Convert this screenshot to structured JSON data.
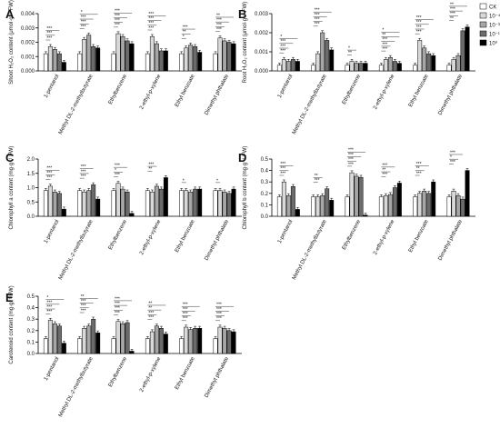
{
  "legend": {
    "entries": [
      "CK",
      "10⁻⁴",
      "10⁻³",
      "10⁻¹",
      "10⁰"
    ],
    "colors": [
      "#ffffff",
      "#d9d9d9",
      "#a6a6a6",
      "#6b6b6b",
      "#000000"
    ],
    "placement": "top-right"
  },
  "chart_data": [
    {
      "panel": "A",
      "type": "bar",
      "ylabel": "Shoot H₂O₂ content (μmol·g⁻¹ FW)",
      "ylim": [
        0,
        0.004
      ],
      "yticks": [
        "0.000",
        "0.001",
        "0.002",
        "0.003",
        "0.004"
      ],
      "categories": [
        "1-pentanol",
        "Methyl DL-2-methylbutyrate",
        "Ethylbenzene",
        "2-ethyl-p-xylene",
        "Ethyl benzoate",
        "Dimethyl phthalate"
      ],
      "series": [
        {
          "name": "CK",
          "values": [
            0.0012,
            0.0012,
            0.0012,
            0.0012,
            0.0012,
            0.0012
          ]
        },
        {
          "name": "10⁻⁴",
          "values": [
            0.0017,
            0.0022,
            0.0026,
            0.0024,
            0.0016,
            0.0023
          ]
        },
        {
          "name": "10⁻³",
          "values": [
            0.0015,
            0.0025,
            0.0024,
            0.0019,
            0.0018,
            0.0021
          ]
        },
        {
          "name": "10⁻¹",
          "values": [
            0.0012,
            0.0017,
            0.0021,
            0.0014,
            0.0017,
            0.002
          ]
        },
        {
          "name": "10⁰",
          "values": [
            0.0006,
            0.0016,
            0.0019,
            0.0014,
            0.0013,
            0.0019
          ]
        }
      ],
      "annotations": [
        [
          "***",
          "***",
          "***"
        ],
        [
          "***",
          "***",
          "***",
          "*"
        ],
        [
          "***",
          "***",
          "***",
          "***"
        ],
        [
          "***",
          "***",
          "***",
          "***"
        ],
        [
          "*",
          "**",
          "***"
        ],
        [
          "***",
          "***",
          "***",
          "**"
        ]
      ]
    },
    {
      "panel": "B",
      "type": "bar",
      "ylabel": "Root H₂O₂ content (μmol·g⁻¹ FW)",
      "ylim": [
        0,
        0.003
      ],
      "yticks": [
        "0.000",
        "0.001",
        "0.002",
        "0.003"
      ],
      "categories": [
        "1-pentanol",
        "Methyl DL-2-methylbutyrate",
        "Ethylbenzene",
        "2-ethyl-p-xylene",
        "Ethyl benzoate",
        "Dimethyl phthalate"
      ],
      "series": [
        {
          "name": "CK",
          "values": [
            0.0003,
            0.0003,
            0.0003,
            0.0003,
            0.0003,
            0.0003
          ]
        },
        {
          "name": "10⁻⁴",
          "values": [
            0.0006,
            0.0009,
            0.0005,
            0.0006,
            0.0016,
            0.0006
          ]
        },
        {
          "name": "10⁻³",
          "values": [
            0.0005,
            0.002,
            0.0004,
            0.0007,
            0.0012,
            0.0008
          ]
        },
        {
          "name": "10⁻¹",
          "values": [
            0.0006,
            0.0016,
            0.0004,
            0.0005,
            0.0009,
            0.0021
          ]
        },
        {
          "name": "10⁰",
          "values": [
            0.0005,
            0.0011,
            0.0004,
            0.0004,
            0.0008,
            0.0023
          ]
        }
      ],
      "annotations": [
        [
          "***",
          "***",
          "***",
          "*"
        ],
        [
          "***",
          "***",
          "***",
          "***"
        ],
        [
          "**",
          "*"
        ],
        [
          "***",
          "***",
          "***",
          "**",
          "*"
        ],
        [
          "***",
          "***",
          "***",
          "***"
        ],
        [
          "**",
          "***",
          "***",
          "**"
        ]
      ]
    },
    {
      "panel": "C",
      "type": "bar",
      "ylabel": "Chlorophyll a content (mg·g⁻¹ FW)",
      "ylim": [
        0,
        2.0
      ],
      "yticks": [
        "0.0",
        "0.5",
        "1.0",
        "1.5",
        "2.0"
      ],
      "categories": [
        "1-pentanol",
        "Methyl DL-2-methylbutyrate",
        "Ethylbenzene",
        "2-ethyl-p-xylene",
        "Ethyl benzoate",
        "Dimethyl phthalate"
      ],
      "series": [
        {
          "name": "CK",
          "values": [
            0.9,
            0.9,
            0.9,
            0.9,
            0.9,
            0.9
          ]
        },
        {
          "name": "10⁻⁴",
          "values": [
            1.05,
            0.85,
            1.15,
            0.85,
            0.9,
            0.9
          ]
        },
        {
          "name": "10⁻³",
          "values": [
            0.85,
            0.9,
            0.95,
            1.05,
            0.85,
            0.85
          ]
        },
        {
          "name": "10⁻¹",
          "values": [
            0.8,
            1.1,
            0.85,
            0.95,
            0.95,
            0.8
          ]
        },
        {
          "name": "10⁰",
          "values": [
            0.25,
            0.6,
            0.1,
            1.35,
            0.95,
            0.95
          ]
        }
      ],
      "annotations": [
        [
          "***",
          "***",
          "***"
        ],
        [
          "***",
          "***",
          "***"
        ],
        [
          "***",
          "*",
          "***"
        ],
        [
          "**",
          "***"
        ],
        [
          "*"
        ],
        [
          "*"
        ]
      ]
    },
    {
      "panel": "D",
      "type": "bar",
      "ylabel": "Chlorophyll b content (mg·g⁻¹ FW)",
      "ylim": [
        0,
        0.5
      ],
      "yticks": [
        "0.0",
        "0.1",
        "0.2",
        "0.3",
        "0.4",
        "0.5"
      ],
      "categories": [
        "1-pentanol",
        "Methyl DL-2-methylbutyrate",
        "Ethylbenzene",
        "2-ethyl-p-xylene",
        "Ethyl benzoate",
        "Dimethyl phthalate"
      ],
      "series": [
        {
          "name": "CK",
          "values": [
            0.17,
            0.17,
            0.17,
            0.17,
            0.17,
            0.17
          ]
        },
        {
          "name": "10⁻⁴",
          "values": [
            0.3,
            0.17,
            0.38,
            0.18,
            0.2,
            0.22
          ]
        },
        {
          "name": "10⁻³",
          "values": [
            0.18,
            0.18,
            0.35,
            0.19,
            0.22,
            0.18
          ]
        },
        {
          "name": "10⁻¹",
          "values": [
            0.26,
            0.24,
            0.34,
            0.25,
            0.2,
            0.15
          ]
        },
        {
          "name": "10⁰",
          "values": [
            0.06,
            0.14,
            0.01,
            0.29,
            0.3,
            0.4
          ]
        }
      ],
      "annotations": [
        [
          "***",
          "***",
          "***"
        ],
        [
          "***",
          "**"
        ],
        [
          "***",
          "***",
          "***",
          "***"
        ],
        [
          "***",
          "**",
          "***"
        ],
        [
          "***",
          "**",
          "***"
        ],
        [
          "***",
          "*",
          "***"
        ]
      ]
    },
    {
      "panel": "E",
      "type": "bar",
      "ylabel": "Carotenoid content (mg·g⁻¹ FW)",
      "ylim": [
        0,
        0.5
      ],
      "yticks": [
        "0.0",
        "0.1",
        "0.2",
        "0.3",
        "0.4",
        "0.5"
      ],
      "categories": [
        "1-pentanol",
        "Methyl DL-2-methylbutyrate",
        "Ethylbenzene",
        "2-ethyl-p-xylene",
        "Ethyl benzoate",
        "Dimethyl phthalate"
      ],
      "series": [
        {
          "name": "CK",
          "values": [
            0.13,
            0.13,
            0.13,
            0.13,
            0.13,
            0.13
          ]
        },
        {
          "name": "10⁻⁴",
          "values": [
            0.29,
            0.22,
            0.28,
            0.19,
            0.23,
            0.23
          ]
        },
        {
          "name": "10⁻³",
          "values": [
            0.26,
            0.24,
            0.26,
            0.24,
            0.21,
            0.22
          ]
        },
        {
          "name": "10⁻¹",
          "values": [
            0.24,
            0.3,
            0.27,
            0.22,
            0.22,
            0.2
          ]
        },
        {
          "name": "10⁰",
          "values": [
            0.09,
            0.18,
            0.02,
            0.17,
            0.22,
            0.19
          ]
        }
      ],
      "annotations": [
        [
          "***",
          "***",
          "***",
          "*"
        ],
        [
          "***",
          "***",
          "***",
          "**"
        ],
        [
          "***",
          "***",
          "***",
          "***"
        ],
        [
          "***",
          "***",
          "**",
          "**"
        ],
        [
          "***",
          "***",
          "***",
          "***"
        ],
        [
          "***",
          "***",
          "***",
          "***"
        ]
      ]
    }
  ]
}
